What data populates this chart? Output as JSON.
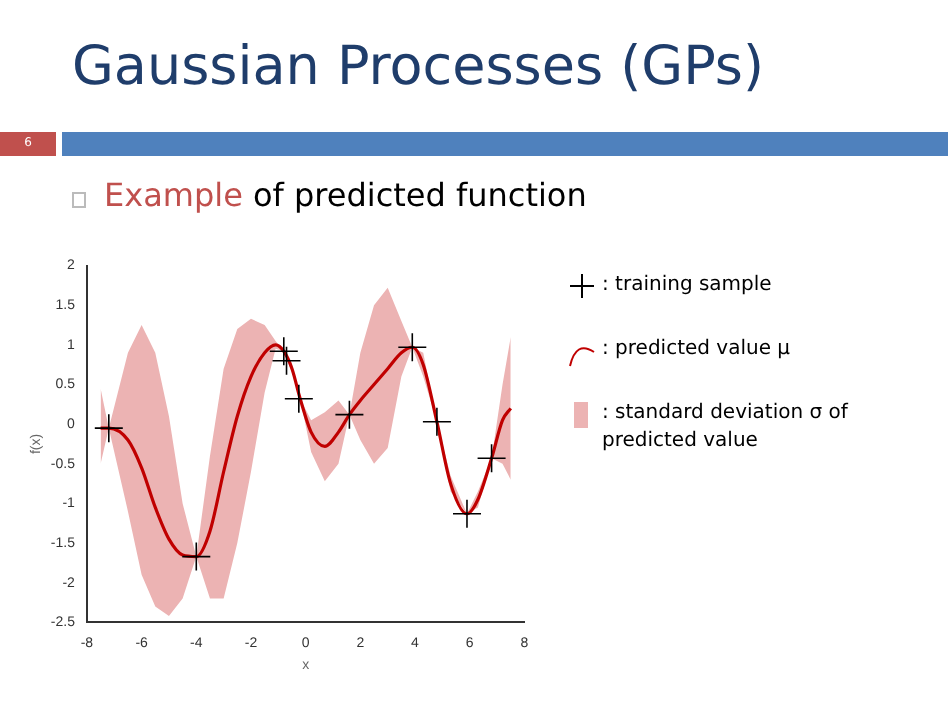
{
  "chart_data": {
    "type": "line",
    "title": "Gaussian Processes (GPs)",
    "subtitle": "Example of predicted function",
    "xlabel": "x",
    "ylabel": "f(x)",
    "annotations": [
      "6",
      ": standard deviation σ of predicted value"
    ],
    "xlim": [
      -8,
      8
    ],
    "xticks": [
      -8,
      -6,
      -4,
      -2,
      0,
      2,
      4,
      6,
      8
    ],
    "ylim": [
      -2.5,
      2
    ],
    "yticks": [
      -2.5,
      -2,
      -1.5,
      -1,
      -0.5,
      0,
      0.5,
      1,
      1.5,
      2
    ],
    "grid": false,
    "legend": "right",
    "marker": "none",
    "line_style": "solid",
    "series": [
      {
        "type": "scatter",
        "name": ": training sample",
        "color": "#000000",
        "marker": "cross",
        "x": [
          -7.2,
          -4,
          -0.8,
          -0.7,
          -0.25,
          1.6,
          3.9,
          4.8,
          5.9,
          6.8
        ],
        "values": [
          -0.05,
          -1.67,
          0.92,
          0.8,
          0.32,
          0.12,
          0.97,
          0.03,
          -1.13,
          -0.43
        ]
      },
      {
        "name": ": predicted value μ",
        "color": "#c00000",
        "x": [
          -7.5,
          -7.2,
          -6.5,
          -6,
          -5.5,
          -5,
          -4.5,
          -4,
          -3.5,
          -3,
          -2.5,
          -2,
          -1.5,
          -1.1,
          -0.8,
          -0.5,
          -0.2,
          0.2,
          0.7,
          1.2,
          1.6,
          2,
          2.5,
          3,
          3.5,
          3.9,
          4.3,
          4.8,
          5.3,
          5.9,
          6.3,
          6.8,
          7.2,
          7.5
        ],
        "values": [
          -0.05,
          -0.05,
          -0.2,
          -0.55,
          -1.05,
          -1.45,
          -1.65,
          -1.67,
          -1.35,
          -0.6,
          0.1,
          0.6,
          0.9,
          1.0,
          0.92,
          0.7,
          0.32,
          -0.1,
          -0.28,
          -0.1,
          0.12,
          0.3,
          0.5,
          0.7,
          0.9,
          0.97,
          0.75,
          0.03,
          -0.75,
          -1.13,
          -0.95,
          -0.43,
          0.05,
          0.2
        ],
        "lower": [
          -0.5,
          -0.05,
          -1.1,
          -1.9,
          -2.3,
          -2.42,
          -2.2,
          -1.67,
          -2.2,
          -2.2,
          -1.5,
          -0.6,
          0.4,
          0.95,
          0.92,
          0.65,
          0.32,
          -0.35,
          -0.72,
          -0.5,
          0.12,
          -0.2,
          -0.5,
          -0.3,
          0.6,
          0.97,
          0.6,
          0.03,
          -0.85,
          -1.13,
          -1.05,
          -0.43,
          -0.5,
          -0.7
        ],
        "upper": [
          0.45,
          -0.05,
          0.9,
          1.25,
          0.9,
          0.1,
          -1.0,
          -1.67,
          -0.4,
          0.7,
          1.2,
          1.33,
          1.25,
          1.05,
          0.92,
          0.75,
          0.32,
          0.05,
          0.15,
          0.3,
          0.12,
          0.9,
          1.5,
          1.72,
          1.3,
          0.97,
          0.9,
          0.03,
          -0.65,
          -1.13,
          -0.85,
          -0.43,
          0.5,
          1.1
        ]
      }
    ]
  }
}
